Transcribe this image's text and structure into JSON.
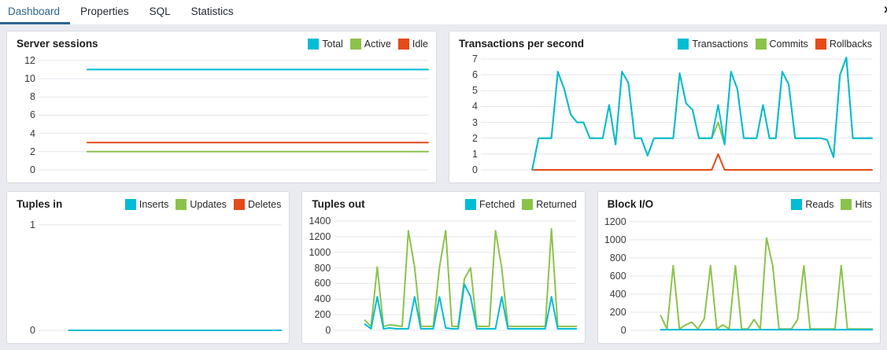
{
  "tabs": {
    "items": [
      {
        "label": "Dashboard",
        "active": true
      },
      {
        "label": "Properties",
        "active": false
      },
      {
        "label": "SQL",
        "active": false
      },
      {
        "label": "Statistics",
        "active": false
      }
    ],
    "close_icon": "x"
  },
  "colors": {
    "cyan": "#00BCD4",
    "green": "#8BC34A",
    "orange": "#E64A19",
    "tab_active": "#2c6693",
    "gridline": "#e3e4ec",
    "panel_bg": "#ffffff",
    "page_bg": "#e9ebf1"
  },
  "chart_data": [
    {
      "type": "line",
      "title": "Server sessions",
      "legend": [
        {
          "label": "Total",
          "color": "#00BCD4"
        },
        {
          "label": "Active",
          "color": "#8BC34A"
        },
        {
          "label": "Idle",
          "color": "#E64A19"
        }
      ],
      "y_ticks": [
        0,
        2,
        4,
        6,
        8,
        10,
        12
      ],
      "ylim": [
        0,
        12.5
      ],
      "grid": true,
      "series": [
        {
          "name": "Total",
          "color": "#00BCD4",
          "values": [
            null,
            11,
            11,
            11,
            11,
            11,
            11,
            11,
            11
          ]
        },
        {
          "name": "Active",
          "color": "#8BC34A",
          "values": [
            null,
            2,
            2,
            2,
            2,
            2,
            2,
            2,
            2
          ]
        },
        {
          "name": "Idle",
          "color": "#E64A19",
          "values": [
            null,
            3,
            3,
            3,
            3,
            3,
            3,
            3,
            3
          ]
        }
      ]
    },
    {
      "type": "line",
      "title": "Transactions per second",
      "legend": [
        {
          "label": "Transactions",
          "color": "#00BCD4"
        },
        {
          "label": "Commits",
          "color": "#8BC34A"
        },
        {
          "label": "Rollbacks",
          "color": "#E64A19"
        }
      ],
      "y_ticks": [
        0,
        1,
        2,
        3,
        4,
        5,
        6,
        7
      ],
      "ylim": [
        0,
        7.2
      ],
      "grid": true,
      "series": [
        {
          "name": "Transactions",
          "color": "#00BCD4",
          "values": [
            null,
            null,
            null,
            null,
            null,
            null,
            null,
            null,
            0,
            2,
            2,
            2,
            6.2,
            5.1,
            3.5,
            3,
            3,
            2,
            2,
            2,
            4.1,
            1.6,
            6.2,
            5.5,
            2,
            2,
            0.9,
            2,
            2,
            2,
            2,
            6.1,
            4.2,
            3.8,
            2,
            2,
            2,
            4.1,
            1.6,
            6.2,
            5.1,
            2,
            2,
            2,
            4.1,
            2,
            2,
            6.2,
            5.4,
            2,
            2,
            2,
            2,
            2,
            1.9,
            0.8,
            6,
            7.1,
            2,
            2,
            2,
            2
          ]
        },
        {
          "name": "Commits",
          "color": "#8BC34A",
          "values": [
            null,
            null,
            null,
            null,
            null,
            null,
            null,
            null,
            0,
            2,
            2,
            2,
            6.2,
            5.1,
            3.5,
            3,
            3,
            2,
            2,
            2,
            4.1,
            1.6,
            6.2,
            5.5,
            2,
            2,
            0.9,
            2,
            2,
            2,
            2,
            6.1,
            4.2,
            3.8,
            2,
            2,
            2,
            3,
            1.6,
            6.2,
            5.1,
            2,
            2,
            2,
            4.1,
            2,
            2,
            6.2,
            5.4,
            2,
            2,
            2,
            2,
            2,
            1.9,
            0.8,
            6,
            7.1,
            2,
            2,
            2,
            2
          ]
        },
        {
          "name": "Rollbacks",
          "color": "#E64A19",
          "values": [
            null,
            null,
            null,
            null,
            null,
            null,
            null,
            null,
            0,
            0,
            0,
            0,
            0,
            0,
            0,
            0,
            0,
            0,
            0,
            0,
            0,
            0,
            0,
            0,
            0,
            0,
            0,
            0,
            0,
            0,
            0,
            0,
            0,
            0,
            0,
            0,
            0,
            1,
            0,
            0,
            0,
            0,
            0,
            0,
            0,
            0,
            0,
            0,
            0,
            0,
            0,
            0,
            0,
            0,
            0,
            0,
            0,
            0,
            0,
            0,
            0,
            0
          ]
        }
      ]
    },
    {
      "type": "line",
      "title": "Tuples in",
      "legend": [
        {
          "label": "Inserts",
          "color": "#00BCD4"
        },
        {
          "label": "Updates",
          "color": "#8BC34A"
        },
        {
          "label": "Deletes",
          "color": "#E64A19"
        }
      ],
      "y_ticks": [
        0,
        1
      ],
      "ylim": [
        0,
        1.08
      ],
      "grid": true,
      "series": [
        {
          "name": "Inserts",
          "color": "#00BCD4",
          "values": [
            null,
            0,
            0,
            0,
            0,
            0,
            0,
            0,
            0
          ]
        },
        {
          "name": "Updates",
          "color": "#8BC34A",
          "values": [
            null,
            0,
            0,
            0,
            0,
            0,
            0,
            0,
            0
          ]
        },
        {
          "name": "Deletes",
          "color": "#E64A19",
          "values": [
            null,
            0,
            0,
            0,
            0,
            0,
            0,
            0,
            0
          ]
        }
      ]
    },
    {
      "type": "line",
      "title": "Tuples out",
      "legend": [
        {
          "label": "Fetched",
          "color": "#00BCD4"
        },
        {
          "label": "Returned",
          "color": "#8BC34A"
        }
      ],
      "y_ticks": [
        0,
        200,
        400,
        600,
        800,
        1000,
        1200,
        1400
      ],
      "ylim": [
        0,
        1460
      ],
      "grid": true,
      "series": [
        {
          "name": "Fetched",
          "color": "#00BCD4",
          "values": [
            null,
            null,
            null,
            null,
            null,
            80,
            20,
            430,
            20,
            30,
            20,
            20,
            20,
            430,
            20,
            20,
            20,
            430,
            30,
            20,
            20,
            590,
            430,
            20,
            20,
            20,
            20,
            430,
            20,
            20,
            20,
            20,
            20,
            20,
            20,
            430,
            20,
            20,
            20,
            20
          ]
        },
        {
          "name": "Returned",
          "color": "#8BC34A",
          "values": [
            null,
            null,
            null,
            null,
            null,
            130,
            50,
            810,
            50,
            70,
            60,
            50,
            1275,
            810,
            50,
            50,
            50,
            810,
            1275,
            50,
            50,
            660,
            800,
            50,
            50,
            50,
            1275,
            800,
            50,
            50,
            50,
            50,
            50,
            50,
            50,
            1300,
            50,
            50,
            50,
            50
          ]
        }
      ]
    },
    {
      "type": "line",
      "title": "Block I/O",
      "legend": [
        {
          "label": "Reads",
          "color": "#00BCD4"
        },
        {
          "label": "Hits",
          "color": "#8BC34A"
        }
      ],
      "y_ticks": [
        0,
        200,
        400,
        600,
        800,
        1000,
        1200
      ],
      "ylim": [
        0,
        1260
      ],
      "grid": true,
      "series": [
        {
          "name": "Reads",
          "color": "#00BCD4",
          "values": [
            null,
            null,
            null,
            null,
            null,
            8,
            8,
            8,
            8,
            8,
            8,
            8,
            8,
            8,
            8,
            8,
            8,
            8,
            8,
            8,
            8,
            8,
            8,
            8,
            8,
            8,
            8,
            8,
            8,
            8,
            8,
            8,
            8,
            8,
            8,
            8,
            8,
            8,
            8,
            8
          ]
        },
        {
          "name": "Hits",
          "color": "#8BC34A",
          "values": [
            null,
            null,
            null,
            null,
            null,
            160,
            15,
            715,
            15,
            60,
            90,
            15,
            130,
            715,
            15,
            60,
            15,
            715,
            15,
            15,
            120,
            15,
            1020,
            715,
            15,
            15,
            15,
            120,
            715,
            15,
            15,
            15,
            15,
            15,
            715,
            15,
            15,
            15,
            15,
            15
          ]
        }
      ]
    }
  ]
}
